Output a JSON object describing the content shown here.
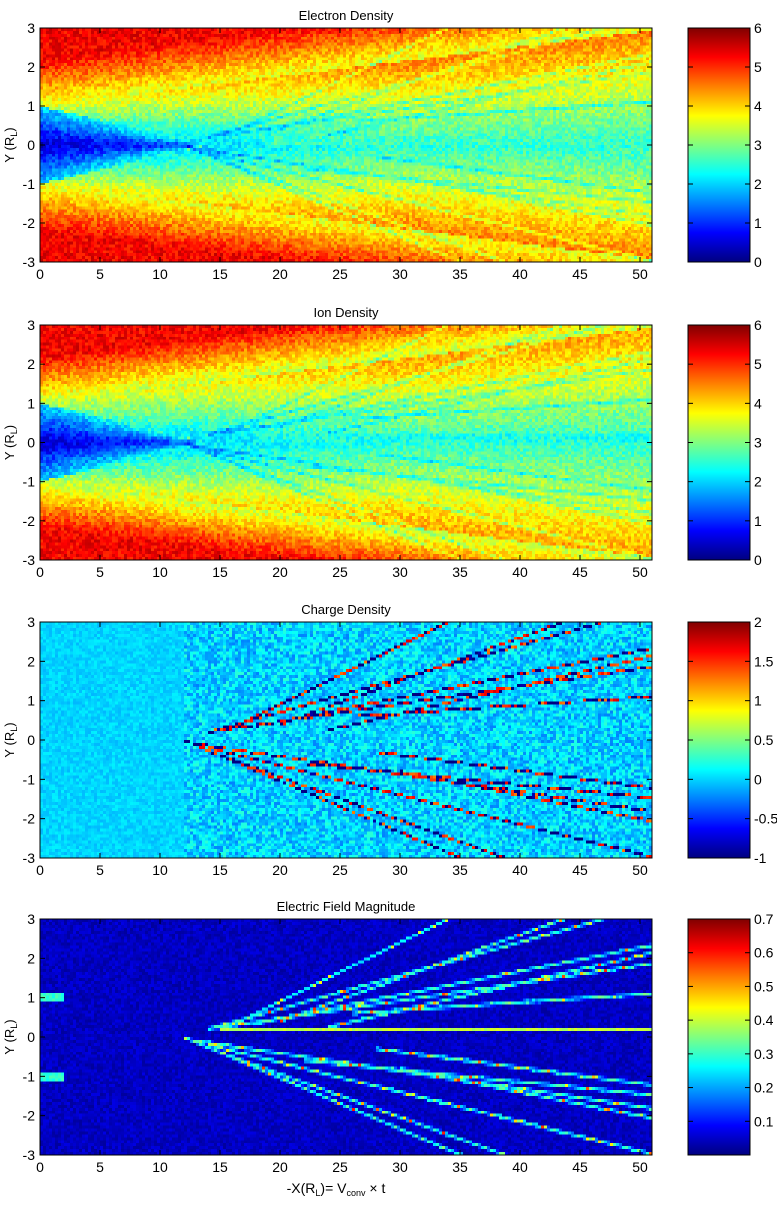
{
  "figure": {
    "colormap": "jet"
  },
  "chart_data": [
    {
      "type": "heatmap",
      "title": "Electron Density",
      "ylabel": "Y (R_L)",
      "xlabel": "",
      "xlim": [
        0,
        51
      ],
      "ylim": [
        -3,
        3
      ],
      "xticks": [
        0,
        5,
        10,
        15,
        20,
        25,
        30,
        35,
        40,
        45,
        50
      ],
      "yticks": [
        3,
        2,
        1,
        0,
        -1,
        -2,
        -3
      ],
      "clim": [
        0,
        6
      ],
      "colorbar_ticks": [
        6,
        5,
        4,
        3,
        2,
        1,
        0
      ],
      "field": "density",
      "features": {
        "background_value": 5.3,
        "dark_wedge": {
          "apex_x": 14,
          "half_width_y": 1,
          "core_value": 0.4
        },
        "central_band": {
          "x_from": 19,
          "y_from": 0,
          "y_to": 0.25,
          "value": 2.6
        },
        "fan_region_value": 3.6,
        "fan_boundary_slope": 0.038
      }
    },
    {
      "type": "heatmap",
      "title": "Ion Density",
      "ylabel": "Y (R_L)",
      "xlabel": "",
      "xlim": [
        0,
        51
      ],
      "ylim": [
        -3,
        3
      ],
      "xticks": [
        0,
        5,
        10,
        15,
        20,
        25,
        30,
        35,
        40,
        45,
        50
      ],
      "yticks": [
        3,
        2,
        1,
        0,
        -1,
        -2,
        -3
      ],
      "clim": [
        0,
        6
      ],
      "colorbar_ticks": [
        6,
        5,
        4,
        3,
        2,
        1,
        0
      ],
      "field": "density",
      "features": {
        "background_value": 5.3,
        "dark_wedge": {
          "apex_x": 14,
          "half_width_y": 1,
          "core_value": 0.4
        },
        "central_band": {
          "x_from": 19,
          "y_from": 0,
          "y_to": 0.25,
          "value": 2.4
        },
        "fan_region_value": 3.4,
        "fan_boundary_slope": 0.038
      }
    },
    {
      "type": "heatmap",
      "title": "Charge Density",
      "ylabel": "Y (R_L)",
      "xlabel": "",
      "xlim": [
        0,
        51
      ],
      "ylim": [
        -3,
        3
      ],
      "xticks": [
        0,
        5,
        10,
        15,
        20,
        25,
        30,
        35,
        40,
        45,
        50
      ],
      "yticks": [
        3,
        2,
        1,
        0,
        -1,
        -2,
        -3
      ],
      "clim": [
        -1,
        2
      ],
      "colorbar_ticks": [
        "2",
        "1.5",
        "1",
        "0.5",
        "0",
        "-0.5",
        "-1"
      ],
      "colorbar_values": [
        2,
        1.5,
        1,
        0.5,
        0,
        -0.5,
        -1
      ],
      "field": "charge",
      "features": {
        "background_value": 0.0,
        "noise_amplitude": 0.25
      }
    },
    {
      "type": "heatmap",
      "title": "Electric Field Magnitude",
      "ylabel": "Y (R_L)",
      "xlabel": "-X(R_L)= V_conv × t",
      "xlim": [
        0,
        51
      ],
      "ylim": [
        -3,
        3
      ],
      "xticks": [
        0,
        5,
        10,
        15,
        20,
        25,
        30,
        35,
        40,
        45,
        50
      ],
      "yticks": [
        3,
        2,
        1,
        0,
        -1,
        -2,
        -3
      ],
      "clim": [
        0,
        0.7
      ],
      "colorbar_ticks": [
        "0.7",
        "0.6",
        "0.5",
        "0.4",
        "0.3",
        "0.2",
        "0.1"
      ],
      "colorbar_values": [
        0.7,
        0.6,
        0.5,
        0.4,
        0.3,
        0.2,
        0.1
      ],
      "field": "efield",
      "features": {
        "background_value": 0.02,
        "filament_value": 0.3,
        "hot_filament_value": 0.55
      }
    }
  ]
}
